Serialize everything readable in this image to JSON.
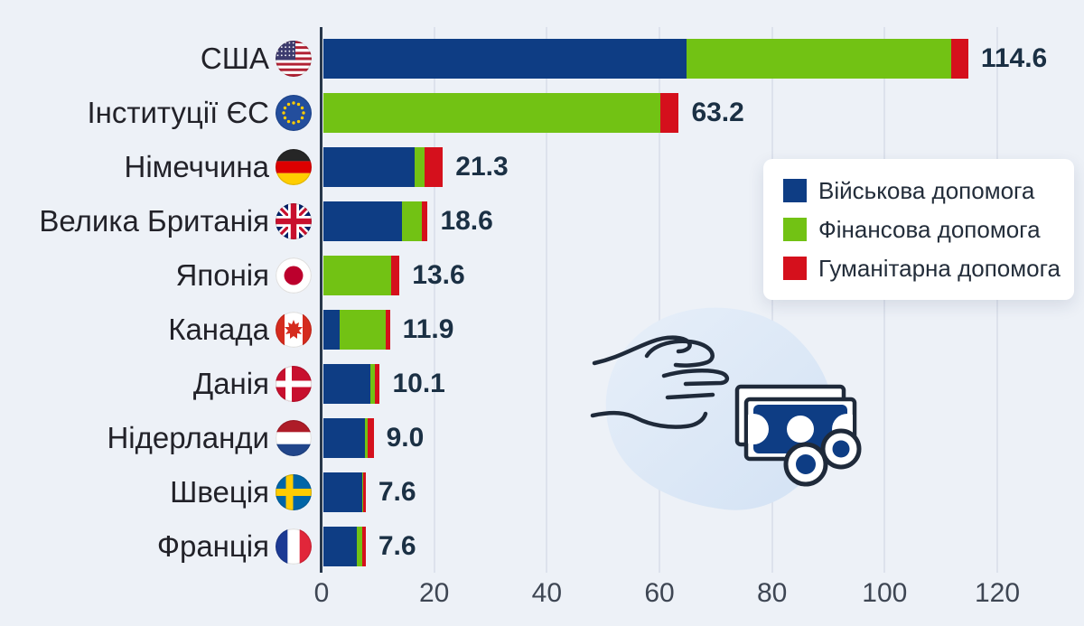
{
  "page": {
    "background": "#edf1f7",
    "title": ""
  },
  "colors": {
    "military": "#0e3d84",
    "financial": "#72c214",
    "humanitarian": "#d5101c",
    "axis": "#27374a",
    "grid": "#dde2ec",
    "value_text": "#1b3044",
    "category_text": "#222229",
    "tick_text": "#3e4653",
    "legend_card": "#ffffff",
    "illustration_line": "#1f2a3a",
    "illustration_fill": "#0e3d84",
    "illustration_blob": "#dbe7f6"
  },
  "legend": {
    "items": [
      {
        "label": "Військова допомога",
        "color": "#0e3d84"
      },
      {
        "label": "Фінансова допомога",
        "color": "#72c214"
      },
      {
        "label": "Гуманітарна допомога",
        "color": "#d5101c"
      }
    ]
  },
  "illustration": {
    "name": "hand-giving-money",
    "parts": [
      "hand-icon",
      "banknote-icon",
      "coins-icon"
    ]
  },
  "chart_data": {
    "type": "bar",
    "orientation": "horizontal",
    "stacked": true,
    "title": "",
    "xlabel": "",
    "ylabel": "",
    "categories": [
      "США",
      "Інституції ЄС",
      "Німеччина",
      "Велика Британія",
      "Японія",
      "Канада",
      "Данія",
      "Нідерланди",
      "Швеція",
      "Франція"
    ],
    "country_codes": [
      "us",
      "eu",
      "de",
      "gb",
      "jp",
      "ca",
      "dk",
      "nl",
      "se",
      "fr"
    ],
    "totals_label": [
      "114.6",
      "63.2",
      "21.3",
      "18.6",
      "13.6",
      "11.9",
      "10.1",
      "9.0",
      "7.6",
      "7.6"
    ],
    "series": [
      {
        "name": "Військова допомога",
        "color": "#0e3d84",
        "values": [
          64.5,
          0,
          16.3,
          14.1,
          0,
          3.0,
          8.5,
          7.4,
          6.9,
          6.0
        ]
      },
      {
        "name": "Фінансова допомога",
        "color": "#72c214",
        "values": [
          47.0,
          59.9,
          1.7,
          3.5,
          12.1,
          8.1,
          0.7,
          0.5,
          0.3,
          0.9
        ]
      },
      {
        "name": "Гуманітарна допомога",
        "color": "#d5101c",
        "values": [
          3.1,
          3.3,
          3.3,
          1.0,
          1.5,
          0.8,
          0.9,
          1.1,
          0.4,
          0.7
        ]
      }
    ],
    "x_ticks": [
      0,
      20,
      40,
      60,
      80,
      100,
      120
    ],
    "xlim": [
      0,
      135
    ],
    "grid": true,
    "legend_position": "right-top"
  }
}
